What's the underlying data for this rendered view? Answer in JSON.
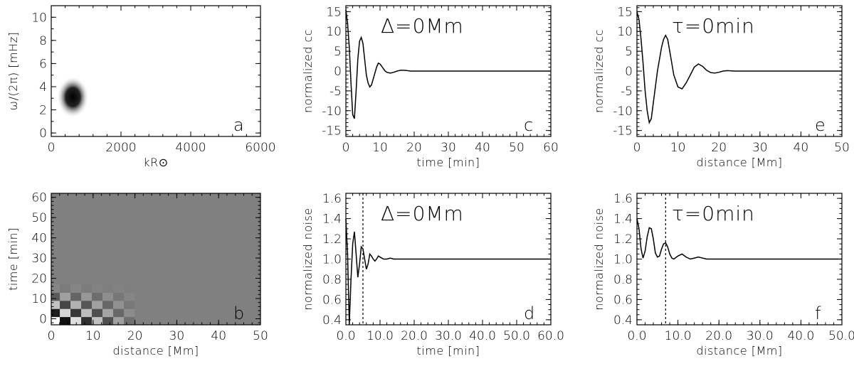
{
  "chart_data": [
    {
      "id": "a",
      "type": "heatmap",
      "panel_label": "a",
      "xlabel": "kR⊙",
      "ylabel": "ω/(2π) [mHz]",
      "xlim": [
        0,
        6000
      ],
      "ylim": [
        -0.3,
        11
      ],
      "xticks": [
        0,
        2000,
        4000,
        6000
      ],
      "yticks": [
        0,
        2,
        4,
        6,
        8,
        10
      ],
      "blob": {
        "center_x": 620,
        "center_y": 3.1,
        "sigma_x": 230,
        "sigma_y": 0.9
      }
    },
    {
      "id": "b",
      "type": "heatmap",
      "panel_label": "b",
      "xlabel": "distance [Mm]",
      "ylabel": "time [min]",
      "xlim": [
        0,
        50
      ],
      "ylim": [
        -3,
        62
      ],
      "xticks": [
        0,
        10,
        20,
        30,
        40,
        50
      ],
      "yticks": [
        0,
        10,
        20,
        30,
        40,
        50,
        60
      ]
    },
    {
      "id": "c",
      "type": "line",
      "panel_label": "c",
      "annotation": "Δ=0Mm",
      "xlabel": "time [min]",
      "ylabel": "normalized cc",
      "xlim": [
        0,
        60
      ],
      "ylim": [
        -16.5,
        16.5
      ],
      "xticks": [
        0,
        10,
        20,
        30,
        40,
        50,
        60
      ],
      "yticks": [
        -15,
        -10,
        -5,
        0,
        5,
        10,
        15
      ],
      "series": [
        {
          "x": [
            0,
            0.5,
            1,
            1.5,
            2,
            2.5,
            3,
            3.5,
            4,
            4.5,
            5,
            5.5,
            6,
            6.5,
            7,
            7.5,
            8,
            8.5,
            9,
            9.5,
            10,
            10.5,
            11,
            11.5,
            12,
            13,
            14,
            15,
            16,
            17,
            18,
            19,
            20,
            22,
            25,
            30,
            40,
            50,
            60
          ],
          "y": [
            15.5,
            12,
            6,
            -3,
            -11,
            -12,
            -5,
            3,
            7.5,
            8.5,
            7,
            3,
            -1,
            -3,
            -4,
            -3.5,
            -2,
            -0.5,
            1,
            2,
            1.8,
            1.2,
            0.6,
            0,
            -0.3,
            -0.5,
            -0.3,
            0,
            0.2,
            0.2,
            0.1,
            0,
            0,
            0,
            0,
            0,
            0,
            0,
            0
          ]
        }
      ]
    },
    {
      "id": "d",
      "type": "line",
      "panel_label": "d",
      "annotation": "Δ=0Mm",
      "xlabel": "time [min]",
      "ylabel": "normalized noise",
      "xlim": [
        0,
        60
      ],
      "ylim": [
        0.35,
        1.65
      ],
      "xticks": [
        0,
        10,
        20,
        30,
        40,
        50,
        60
      ],
      "yticks": [
        0.4,
        0.6,
        0.8,
        1.0,
        1.2,
        1.4,
        1.6
      ],
      "vline_x": 5,
      "series": [
        {
          "x": [
            0,
            0.5,
            1,
            1.5,
            2,
            2.5,
            3,
            3.5,
            4,
            4.5,
            5,
            5.5,
            6,
            6.5,
            7,
            7.5,
            8,
            8.5,
            9,
            9.5,
            10,
            11,
            12,
            13,
            14,
            15,
            20,
            30,
            40,
            50,
            60
          ],
          "y": [
            1.4,
            1.05,
            0.35,
            0.8,
            1.15,
            1.27,
            1.05,
            0.82,
            0.95,
            1.12,
            1.1,
            1.0,
            0.9,
            0.95,
            1.05,
            1.03,
            1.0,
            0.98,
            1.0,
            1.03,
            1.02,
            1.0,
            1.0,
            1.01,
            1.0,
            1.0,
            1.0,
            1.0,
            1.0,
            1.0,
            1.0
          ]
        }
      ]
    },
    {
      "id": "e",
      "type": "line",
      "panel_label": "e",
      "annotation": "τ=0min",
      "xlabel": "distance [Mm]",
      "ylabel": "normalized cc",
      "xlim": [
        0,
        50
      ],
      "ylim": [
        -16.5,
        16.5
      ],
      "xticks": [
        0,
        10,
        20,
        30,
        40,
        50
      ],
      "yticks": [
        -15,
        -10,
        -5,
        0,
        5,
        10,
        15
      ],
      "series": [
        {
          "x": [
            0,
            0.5,
            1,
            1.5,
            2,
            2.5,
            3,
            3.5,
            4,
            5,
            6,
            6.5,
            7,
            7.5,
            8,
            9,
            10,
            11,
            12,
            13,
            14,
            15,
            16,
            17,
            18,
            19,
            20,
            21,
            22,
            24,
            26,
            30,
            40,
            50
          ],
          "y": [
            15,
            13,
            8,
            2,
            -5,
            -10,
            -13,
            -12,
            -8,
            0,
            6,
            8,
            9,
            8,
            5,
            -1,
            -4,
            -4.5,
            -3,
            -1,
            1,
            1.8,
            1.2,
            0.2,
            -0.4,
            -0.5,
            -0.3,
            0,
            0.1,
            0,
            0,
            0,
            0,
            0
          ]
        }
      ]
    },
    {
      "id": "f",
      "type": "line",
      "panel_label": "f",
      "annotation": "τ=0min",
      "xlabel": "distance [Mm]",
      "ylabel": "normalized noise",
      "xlim": [
        0,
        50
      ],
      "ylim": [
        0.35,
        1.65
      ],
      "xticks": [
        0,
        10,
        20,
        30,
        40,
        50
      ],
      "yticks": [
        0.4,
        0.6,
        0.8,
        1.0,
        1.2,
        1.4,
        1.6
      ],
      "vline_x": 7,
      "series": [
        {
          "x": [
            0,
            0.5,
            1,
            1.5,
            2,
            2.5,
            3,
            3.5,
            4,
            4.5,
            5,
            5.5,
            6,
            6.5,
            7,
            7.5,
            8,
            8.5,
            9,
            10,
            11,
            12,
            13,
            14,
            15,
            16,
            17,
            18,
            20,
            25,
            30,
            40,
            50
          ],
          "y": [
            1.4,
            1.3,
            1.1,
            1.01,
            1.08,
            1.22,
            1.31,
            1.3,
            1.2,
            1.06,
            1.02,
            1.03,
            1.1,
            1.15,
            1.16,
            1.12,
            1.05,
            1.01,
            1.0,
            1.03,
            1.05,
            1.02,
            1.0,
            1.01,
            1.02,
            1.01,
            1.0,
            1.0,
            1.0,
            1.0,
            1.0,
            1.0,
            1.0
          ]
        }
      ]
    }
  ]
}
